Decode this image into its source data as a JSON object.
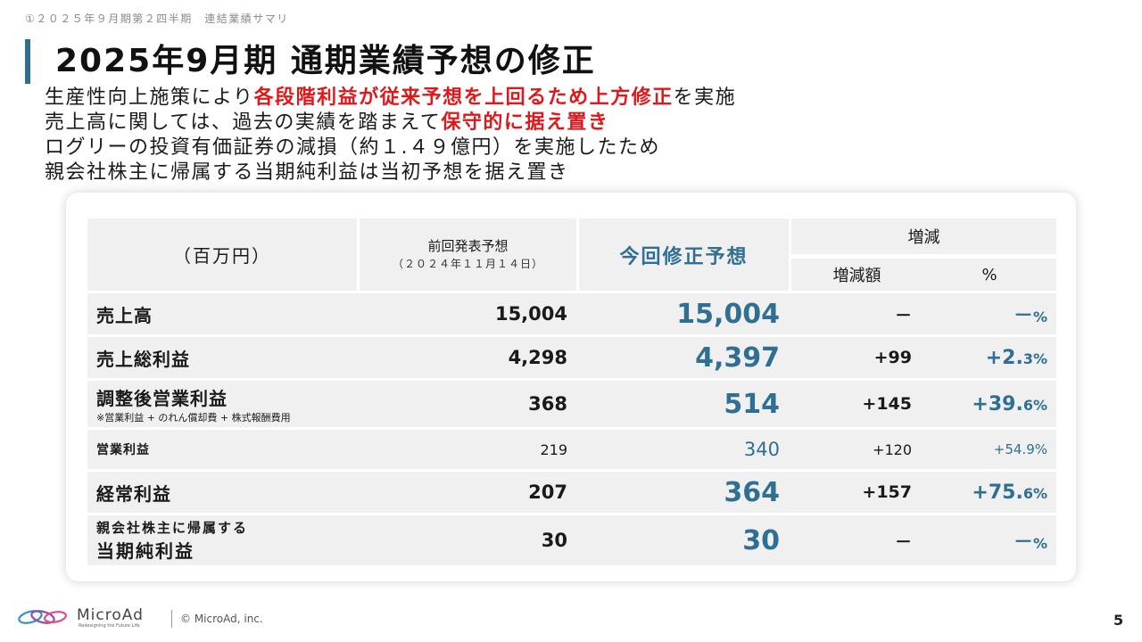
{
  "header": {
    "section_label": "①２０２５年９月期第２四半期　連結業績サマリ",
    "title": "2025年9月期 通期業績予想の修正",
    "accent_color": "#2e6f8e"
  },
  "bullets": [
    {
      "pre": "生産性向上施策により",
      "red": "各段階利益が従来予想を上回るため上方修正",
      "post": "を実施"
    },
    {
      "pre": "売上高に関しては、過去の実績を踏まえて",
      "red": "保守的に据え置き",
      "post": ""
    },
    {
      "pre": "ログリーの投資有価証券の減損（約１.４９億円）を実施したため",
      "red": "",
      "post": ""
    },
    {
      "pre": "親会社株主に帰属する当期純利益は当初予想を据え置き",
      "red": "",
      "post": ""
    }
  ],
  "table": {
    "unit": "（百万円）",
    "prev_header": "前回発表予想",
    "prev_date": "（２０２４年１１月１４日）",
    "now_header": "今回修正予想",
    "change_header": "増減",
    "diff_header": "増減額",
    "pct_header": "%",
    "rows": [
      {
        "label": "売上高",
        "prev": "15,004",
        "now": "15,004",
        "diff": "－",
        "pct": "－",
        "pct_unit": "%"
      },
      {
        "label": "売上総利益",
        "prev": "4,298",
        "now": "4,397",
        "diff": "+99",
        "pct": "+2.",
        "pct_unit": "3%"
      },
      {
        "label": "調整後営業利益",
        "note": "※営業利益 + のれん償却費 + 株式報酬費用",
        "prev": "368",
        "now": "514",
        "diff": "+145",
        "pct": "+39.",
        "pct_unit": "6%"
      },
      {
        "label": "営業利益",
        "prev": "219",
        "now": "340",
        "diff": "+120",
        "pct": "+54.9%",
        "pct_unit": ""
      },
      {
        "label": "経常利益",
        "prev": "207",
        "now": "364",
        "diff": "+157",
        "pct": "+75.",
        "pct_unit": "6%"
      },
      {
        "label_top": "親会社株主に帰属する",
        "label_bottom": "当期純利益",
        "prev": "30",
        "now": "30",
        "diff": "－",
        "pct": "－",
        "pct_unit": "%"
      }
    ]
  },
  "footer": {
    "brand": "MicroAd",
    "tagline": "Redesigning the Future Life",
    "copyright": "© MicroAd, inc.",
    "page_number": "5"
  }
}
